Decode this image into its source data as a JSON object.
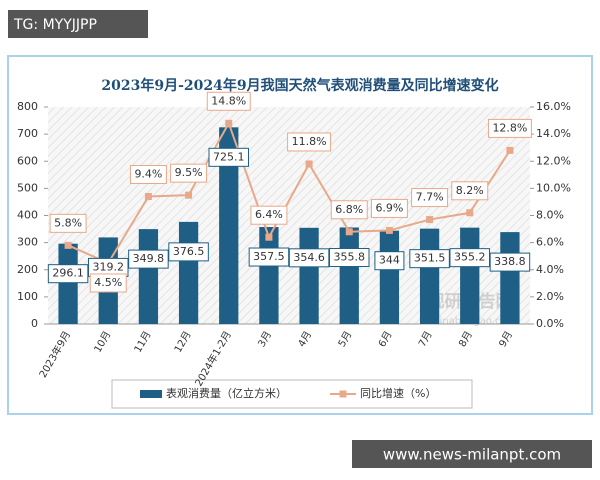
{
  "overlay_top": "TG: MYYJJPP",
  "overlay_bottom": "www.news-milanpt.com",
  "chart_data": {
    "type": "combo",
    "title": "2023年9月-2024年9月我国天然气表观消费量及同比增速变化",
    "categories": [
      "2023年9月",
      "10月",
      "11月",
      "12月",
      "2024年1-2月",
      "3月",
      "4月",
      "5月",
      "6月",
      "7月",
      "8月",
      "9月"
    ],
    "series": [
      {
        "name": "表观消费量（亿立方米）",
        "color": "#1f5f85",
        "values": [
          296.1,
          319.2,
          349.8,
          376.5,
          725.1,
          357.5,
          354.6,
          355.8,
          344,
          351.5,
          355.2,
          338.8
        ]
      },
      {
        "name": "同比增速（%）",
        "color": "#e8a88a",
        "axis": "y2",
        "values": [
          5.8,
          4.5,
          9.4,
          9.5,
          14.8,
          6.4,
          11.8,
          6.8,
          6.9,
          7.7,
          8.2,
          12.8
        ],
        "value_labels": [
          "5.8%",
          "4.5%",
          "9.4%",
          "9.5%",
          "14.8%",
          "6.4%",
          "11.8%",
          "6.8%",
          "6.9%",
          "7.7%",
          "8.2%",
          "12.8%"
        ]
      }
    ],
    "ylim": [
      0,
      800
    ],
    "yticks": [
      0,
      100,
      200,
      300,
      400,
      500,
      600,
      700,
      800
    ],
    "y2lim": [
      0,
      16
    ],
    "y2ticks": [
      {
        "value": 0,
        "label": "0.0%"
      },
      {
        "value": 2,
        "label": "2.0%"
      },
      {
        "value": 4,
        "label": "4.0%"
      },
      {
        "value": 6,
        "label": "6.0%"
      },
      {
        "value": 8,
        "label": "8.0%"
      },
      {
        "value": 10,
        "label": "10.0%"
      },
      {
        "value": 12,
        "label": "12.0%"
      },
      {
        "value": 14,
        "label": "14.0%"
      },
      {
        "value": 16,
        "label": "16.0%"
      }
    ],
    "watermark": [
      "观研报告网",
      "chinabaogao.com"
    ]
  }
}
